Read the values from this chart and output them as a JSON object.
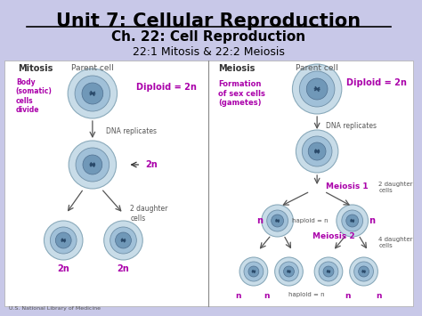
{
  "bg_color": "#c8c8e8",
  "panel_color": "#e8e8f0",
  "title": "Unit 7: Cellular Reproduction",
  "subtitle": "Ch. 22: Cell Reproduction",
  "sub2": "22:1 Mitosis & 22:2 Meiosis",
  "title_fontsize": 15,
  "subtitle_fontsize": 11,
  "sub2_fontsize": 9,
  "purple": "#aa00aa",
  "gray": "#555555",
  "darkgray": "#333333",
  "cell_outer": "#c8dce8",
  "cell_inner": "#a0c0d8",
  "cell_nucleus": "#7098b8",
  "footer": "U.S. National Library of Medicine"
}
